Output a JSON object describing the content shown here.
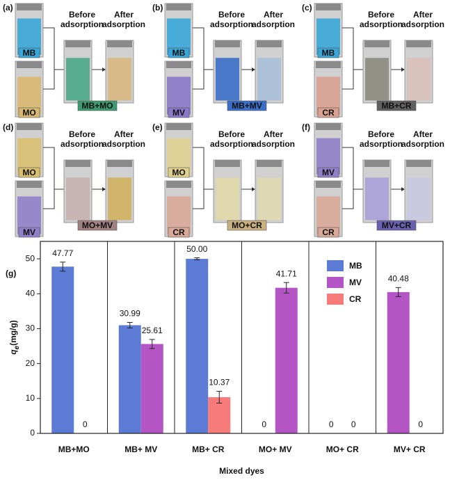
{
  "panels": [
    {
      "label": "(a)",
      "top_dye": "MB",
      "bottom_dye": "MO",
      "before": [
        "Before",
        "adsorption"
      ],
      "after": [
        "After",
        "adsorption"
      ],
      "mixture": "MB+MO",
      "colors": [
        "#3aa6d8",
        "#d8b870",
        "#4aa88a",
        "#d8b880",
        "#3c9a70"
      ]
    },
    {
      "label": "(b)",
      "top_dye": "MB",
      "bottom_dye": "MV",
      "before": [
        "Before",
        "adsorption"
      ],
      "after": [
        "After",
        "adsorption"
      ],
      "mixture": "MB+MV",
      "colors": [
        "#3aa6d8",
        "#8a78c8",
        "#3a6ec8",
        "#a8c0d8",
        "#3a6ec8"
      ]
    },
    {
      "label": "(c)",
      "top_dye": "MB",
      "bottom_dye": "CR",
      "before": [
        "Before",
        "adsorption"
      ],
      "after": [
        "After",
        "adsorption"
      ],
      "mixture": "MB+CR",
      "colors": [
        "#3aa6d8",
        "#d8a090",
        "#8a8a80",
        "#d8c0b8",
        "#606060"
      ]
    },
    {
      "label": "(d)",
      "top_dye": "MO",
      "bottom_dye": "MV",
      "before": [
        "Before",
        "adsorption"
      ],
      "after": [
        "After",
        "adsorption"
      ],
      "mixture": "MO+MV",
      "colors": [
        "#d8c070",
        "#9080c8",
        "#c8b0b0",
        "#d0b060",
        "#a08080"
      ]
    },
    {
      "label": "(e)",
      "top_dye": "MO",
      "bottom_dye": "CR",
      "before": [
        "Before",
        "adsorption"
      ],
      "after": [
        "After",
        "adsorption"
      ],
      "mixture": "MO+CR",
      "colors": [
        "#e0d090",
        "#d8a898",
        "#e0d8a8",
        "#e0d8b0",
        "#c8b080"
      ]
    },
    {
      "label": "(f)",
      "top_dye": "MV",
      "bottom_dye": "CR",
      "before": [
        "Before",
        "adsorption"
      ],
      "after": [
        "After",
        "adsorption"
      ],
      "mixture": "MV+CR",
      "colors": [
        "#9080c8",
        "#d8a898",
        "#a8a0d8",
        "#c8c8e0",
        "#6a60b0"
      ]
    }
  ],
  "chart_data": {
    "type": "bar",
    "label": "(g)",
    "categories": [
      "MB+MO",
      "MB+ MV",
      "MB+ CR",
      "MO+ MV",
      "MO+ CR",
      "MV+ CR"
    ],
    "xlabel": "Mixed dyes",
    "ylabel": [
      "q",
      "e",
      "(mg/g)"
    ],
    "series": [
      {
        "name": "MB",
        "color": "#5b7bd5",
        "values": [
          47.77,
          30.99,
          50.0,
          null,
          null,
          null
        ],
        "value_labels": [
          "47.77",
          "30.99",
          "50.00",
          null,
          null,
          null
        ],
        "errors": [
          1.3,
          0.8,
          0.3,
          null,
          null,
          null
        ]
      },
      {
        "name": "MO",
        "in_legend": false,
        "color": "#d8b870",
        "values": [
          0,
          null,
          null,
          0,
          0,
          null
        ],
        "value_labels": [
          "0",
          null,
          null,
          "0",
          "0",
          null
        ],
        "errors": [
          0,
          null,
          null,
          0,
          0,
          null
        ]
      },
      {
        "name": "MV",
        "color": "#b455c5",
        "values": [
          null,
          25.61,
          null,
          41.71,
          null,
          40.48
        ],
        "value_labels": [
          null,
          "25.61",
          null,
          "41.71",
          null,
          "40.48"
        ],
        "errors": [
          null,
          1.3,
          null,
          1.5,
          null,
          1.3
        ]
      },
      {
        "name": "CR",
        "color": "#f77b7b",
        "values": [
          null,
          null,
          10.37,
          null,
          0,
          0
        ],
        "value_labels": [
          null,
          null,
          "10.37",
          null,
          "0",
          "0"
        ],
        "errors": [
          null,
          null,
          1.7,
          null,
          0,
          0
        ]
      }
    ],
    "ylim": [
      0,
      55
    ],
    "yticks": [
      0,
      10,
      20,
      30,
      40,
      50
    ]
  }
}
